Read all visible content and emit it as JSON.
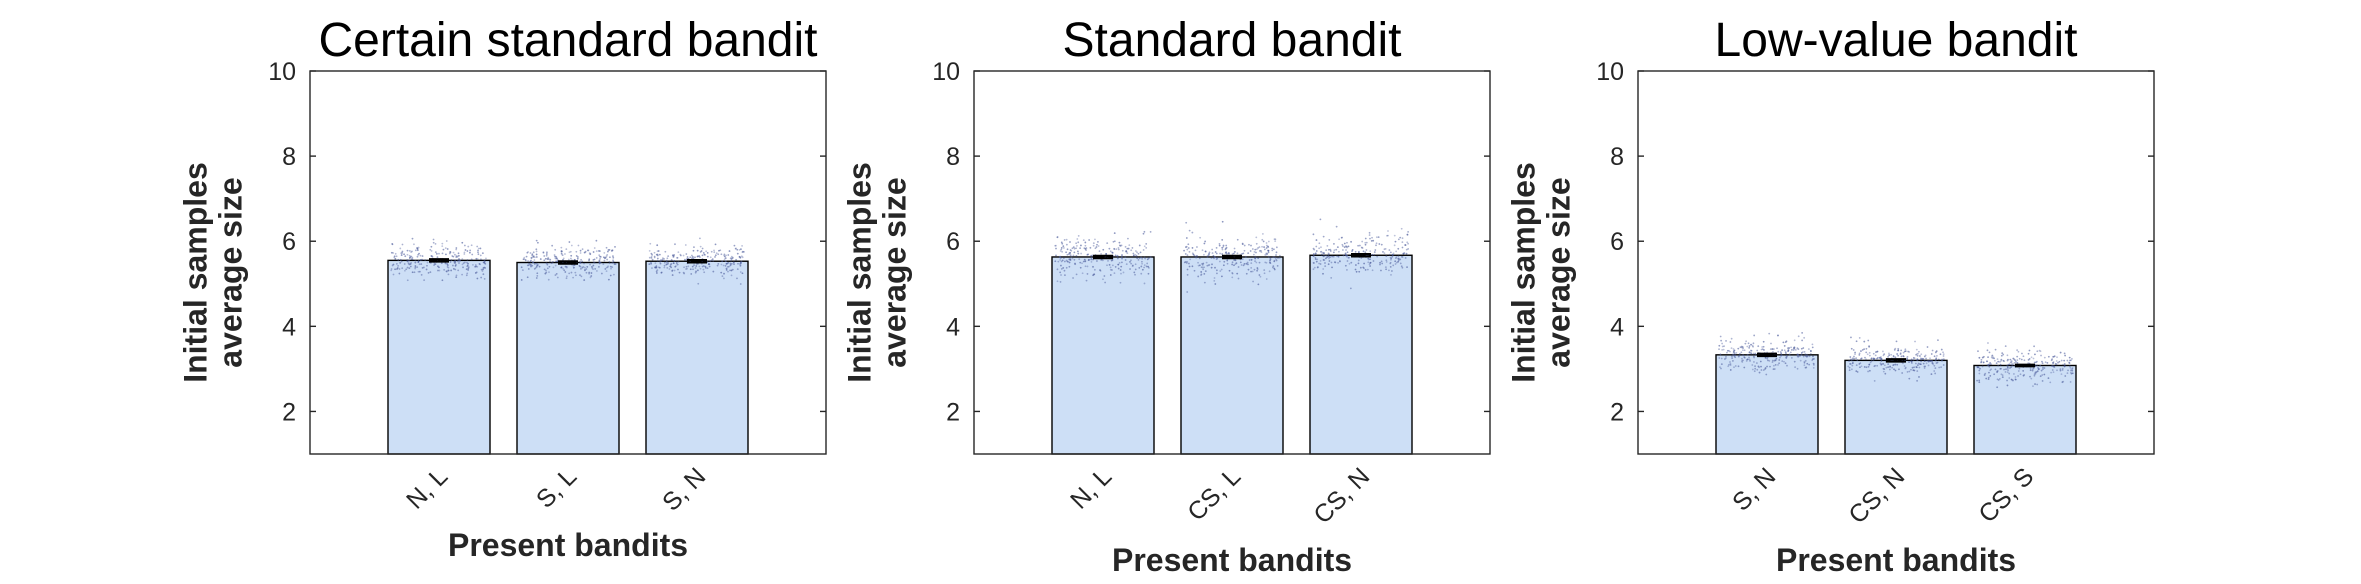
{
  "chart_data": [
    {
      "type": "bar",
      "title": "Certain standard bandit",
      "ylabel_lines": [
        "Initial samples",
        "average size"
      ],
      "xlabel": "Present bandits",
      "categories": [
        "N, L",
        "S, L",
        "S, N"
      ],
      "values": [
        5.55,
        5.5,
        5.53
      ],
      "errors": [
        0.03,
        0.03,
        0.03
      ],
      "ylim": [
        1,
        10
      ],
      "yticks": [
        2,
        4,
        6,
        8,
        10
      ],
      "scatter_spread": 0.35
    },
    {
      "type": "bar",
      "title": "Standard bandit",
      "ylabel_lines": [
        "Initial samples",
        "average size"
      ],
      "xlabel": "Present bandits",
      "categories": [
        "N, L",
        "CS, L",
        "CS, N"
      ],
      "values": [
        5.63,
        5.63,
        5.67
      ],
      "errors": [
        0.03,
        0.03,
        0.03
      ],
      "ylim": [
        1,
        10
      ],
      "yticks": [
        2,
        4,
        6,
        8,
        10
      ],
      "scatter_spread": 0.45
    },
    {
      "type": "bar",
      "title": "Low-value bandit",
      "ylabel_lines": [
        "Initial samples",
        "average size"
      ],
      "xlabel": "Present bandits",
      "categories": [
        "S, N",
        "CS, N",
        "CS, S"
      ],
      "values": [
        3.33,
        3.2,
        3.08
      ],
      "errors": [
        0.03,
        0.03,
        0.02
      ],
      "ylim": [
        1,
        10
      ],
      "yticks": [
        2,
        4,
        6,
        8,
        10
      ],
      "scatter_spread": 0.33
    }
  ]
}
